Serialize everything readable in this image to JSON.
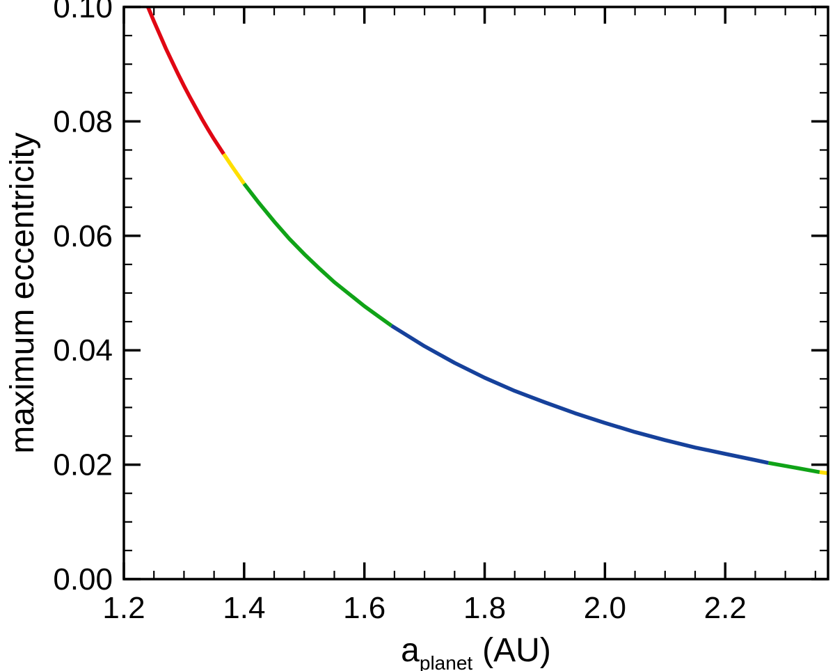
{
  "figure": {
    "background": "#ffffff",
    "axis_color": "#000000",
    "ylabel": "maximum eccentricity",
    "xlabel": {
      "base": "a",
      "subscript": "planet",
      "suffix": "(AU)"
    },
    "x_axis": {
      "min": 1.2,
      "max": 2.371,
      "major_ticks": [
        1.2,
        1.4,
        1.6,
        1.8,
        2.0,
        2.2
      ],
      "tick_labels": [
        "1.2",
        "1.4",
        "1.6",
        "1.8",
        "2.0",
        "2.2"
      ],
      "minor_step": 0.05
    },
    "y_axis": {
      "min": 0.0,
      "max": 0.1,
      "major_ticks": [
        0.0,
        0.02,
        0.04,
        0.06,
        0.08,
        0.1
      ],
      "tick_labels": [
        "0.00",
        "0.02",
        "0.04",
        "0.06",
        "0.08",
        "0.10"
      ],
      "minor_step": 0.005
    }
  },
  "chart_data": {
    "type": "line",
    "title": "",
    "xlabel": "a_planet (AU)",
    "ylabel": "maximum eccentricity",
    "xlim": [
      1.2,
      2.371
    ],
    "ylim": [
      0.0,
      0.1
    ],
    "grid": false,
    "legend": "none",
    "description": "Single decreasing curve of maximum eccentricity vs planet semi-major axis, drawn in colored segments (red, yellow, green, blue, green, yellow).",
    "series": [
      {
        "name": "red-1",
        "color": "#e00713",
        "points": [
          [
            1.24,
            0.1
          ],
          [
            1.25,
            0.0975
          ],
          [
            1.26,
            0.0951
          ],
          [
            1.27,
            0.0927
          ],
          [
            1.28,
            0.0905
          ],
          [
            1.29,
            0.0883
          ],
          [
            1.3,
            0.0862
          ],
          [
            1.31,
            0.0842
          ],
          [
            1.32,
            0.0823
          ],
          [
            1.33,
            0.0804
          ],
          [
            1.34,
            0.0786
          ],
          [
            1.35,
            0.0769
          ],
          [
            1.366,
            0.0743
          ]
        ]
      },
      {
        "name": "yellow-1",
        "color": "#ffdf00",
        "points": [
          [
            1.366,
            0.0743
          ],
          [
            1.38,
            0.0721
          ],
          [
            1.4,
            0.0691
          ]
        ]
      },
      {
        "name": "green-1",
        "color": "#10a317",
        "points": [
          [
            1.4,
            0.0691
          ],
          [
            1.425,
            0.0657
          ],
          [
            1.45,
            0.0625
          ],
          [
            1.475,
            0.0595
          ],
          [
            1.5,
            0.0568
          ],
          [
            1.525,
            0.0543
          ],
          [
            1.55,
            0.0519
          ],
          [
            1.575,
            0.0498
          ],
          [
            1.6,
            0.0477
          ],
          [
            1.625,
            0.0458
          ],
          [
            1.645,
            0.0443
          ]
        ]
      },
      {
        "name": "blue-1",
        "color": "#16419b",
        "points": [
          [
            1.645,
            0.0443
          ],
          [
            1.7,
            0.0407
          ],
          [
            1.75,
            0.0378
          ],
          [
            1.8,
            0.0352
          ],
          [
            1.85,
            0.0329
          ],
          [
            1.9,
            0.0309
          ],
          [
            1.95,
            0.029
          ],
          [
            2.0,
            0.0273
          ],
          [
            2.05,
            0.0257
          ],
          [
            2.1,
            0.0243
          ],
          [
            2.15,
            0.023
          ],
          [
            2.2,
            0.0219
          ],
          [
            2.25,
            0.0208
          ],
          [
            2.272,
            0.0203
          ]
        ]
      },
      {
        "name": "green-2",
        "color": "#10a317",
        "points": [
          [
            2.272,
            0.0203
          ],
          [
            2.31,
            0.0196
          ],
          [
            2.357,
            0.0187
          ]
        ]
      },
      {
        "name": "yellow-2",
        "color": "#ffdf00",
        "points": [
          [
            2.357,
            0.0187
          ],
          [
            2.371,
            0.0185
          ]
        ]
      }
    ]
  }
}
